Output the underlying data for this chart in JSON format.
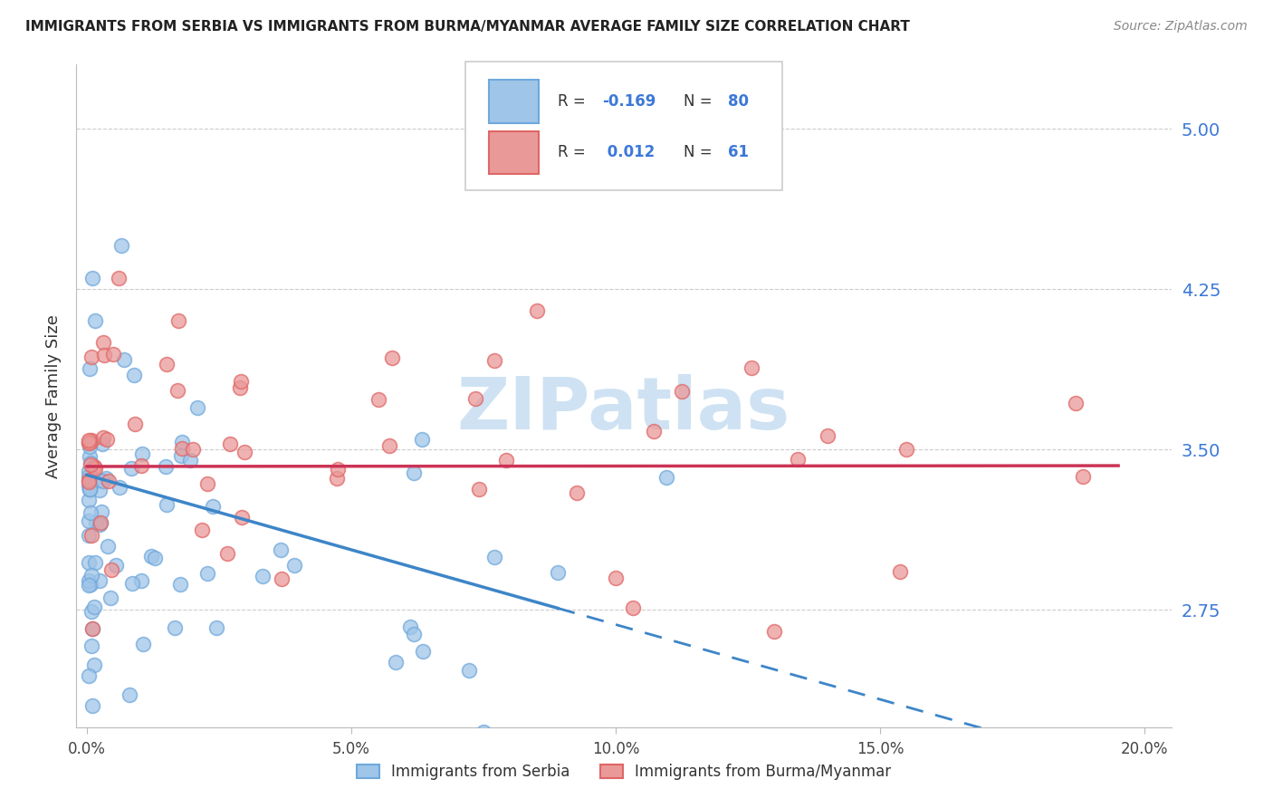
{
  "title": "IMMIGRANTS FROM SERBIA VS IMMIGRANTS FROM BURMA/MYANMAR AVERAGE FAMILY SIZE CORRELATION CHART",
  "source": "Source: ZipAtlas.com",
  "ylabel": "Average Family Size",
  "xlabel_ticks": [
    "0.0%",
    "5.0%",
    "10.0%",
    "15.0%",
    "20.0%"
  ],
  "xlabel_vals": [
    0.0,
    0.05,
    0.1,
    0.15,
    0.2
  ],
  "yticks": [
    2.75,
    3.5,
    4.25,
    5.0
  ],
  "ylim": [
    2.2,
    5.3
  ],
  "xlim": [
    -0.002,
    0.205
  ],
  "serbia_R": -0.169,
  "serbia_N": 80,
  "burma_R": 0.012,
  "burma_N": 61,
  "serbia_color": "#9fc5e8",
  "burma_color": "#ea9999",
  "serbia_edge_color": "#6fa8dc",
  "burma_edge_color": "#e06666",
  "serbia_line_color": "#3d85c8",
  "burma_line_color": "#cc3355",
  "watermark_color": "#cfe2f3",
  "title_fontsize": 11,
  "source_fontsize": 10,
  "ytick_color": "#3c78d8",
  "grid_color": "#cccccc"
}
